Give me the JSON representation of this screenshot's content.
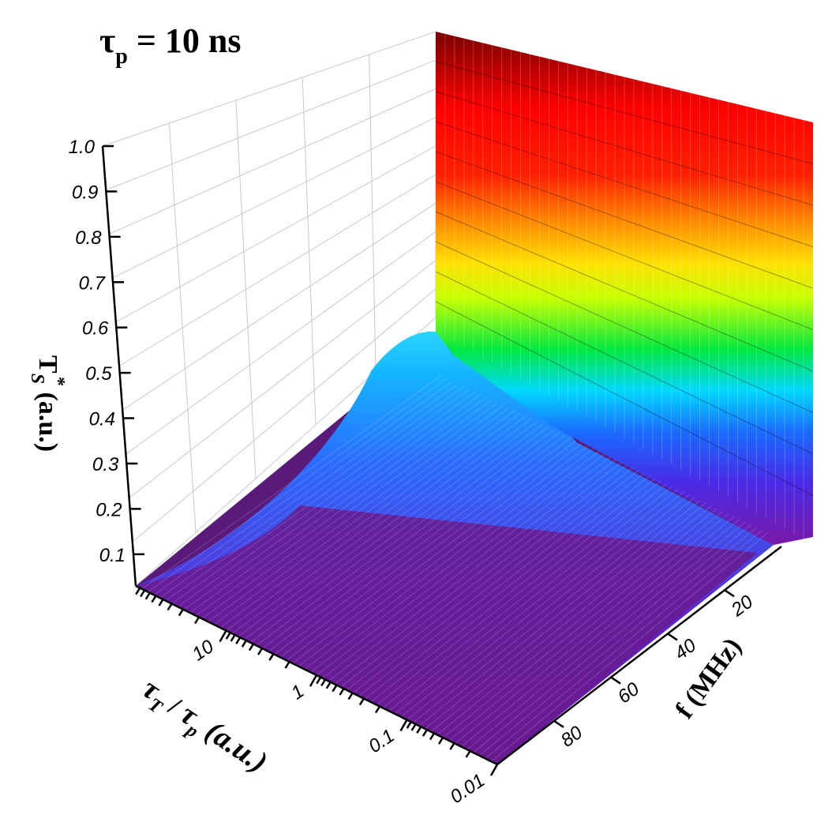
{
  "chart_data": {
    "type": "surface3d",
    "title": {
      "main": "τ",
      "sub": "p",
      "rest": " = 10 ns"
    },
    "zlabel": {
      "main": "T",
      "sub": "S",
      "sup": "*",
      "rest": " (a.u.)"
    },
    "xlabel": {
      "a": "τ",
      "a_sub": "T",
      "mid": " / ",
      "b": "τ",
      "b_sub": "p",
      "rest": " (a.u.)"
    },
    "ylabel": "f (MHz)",
    "z_ticks": [
      "0.1",
      "0.2",
      "0.3",
      "0.4",
      "0.5",
      "0.6",
      "0.7",
      "0.8",
      "0.9",
      "1.0"
    ],
    "z_range": [
      0.03,
      1.0
    ],
    "x_scale": "log",
    "x_ticks": [
      "10",
      "1",
      "0.1",
      "0.01"
    ],
    "x_range": [
      0.01,
      100
    ],
    "y_ticks": [
      "20",
      "40",
      "60",
      "80"
    ],
    "y_range": [
      0,
      100
    ],
    "surface": {
      "floor_value": 0.03,
      "saturation_value": 1.0,
      "colormap": "rainbow",
      "description_samples": [
        {
          "tau_ratio": 100,
          "f": 0,
          "Ts": 0.55
        },
        {
          "tau_ratio": 100,
          "f": 50,
          "Ts": 0.57
        },
        {
          "tau_ratio": 100,
          "f": 100,
          "Ts": 1.0
        },
        {
          "tau_ratio": 10,
          "f": 0,
          "Ts": 0.3
        },
        {
          "tau_ratio": 1,
          "f": 0,
          "Ts": 0.05
        },
        {
          "tau_ratio": 0.01,
          "f": 100,
          "Ts": 0.03
        }
      ]
    },
    "grid": true
  }
}
